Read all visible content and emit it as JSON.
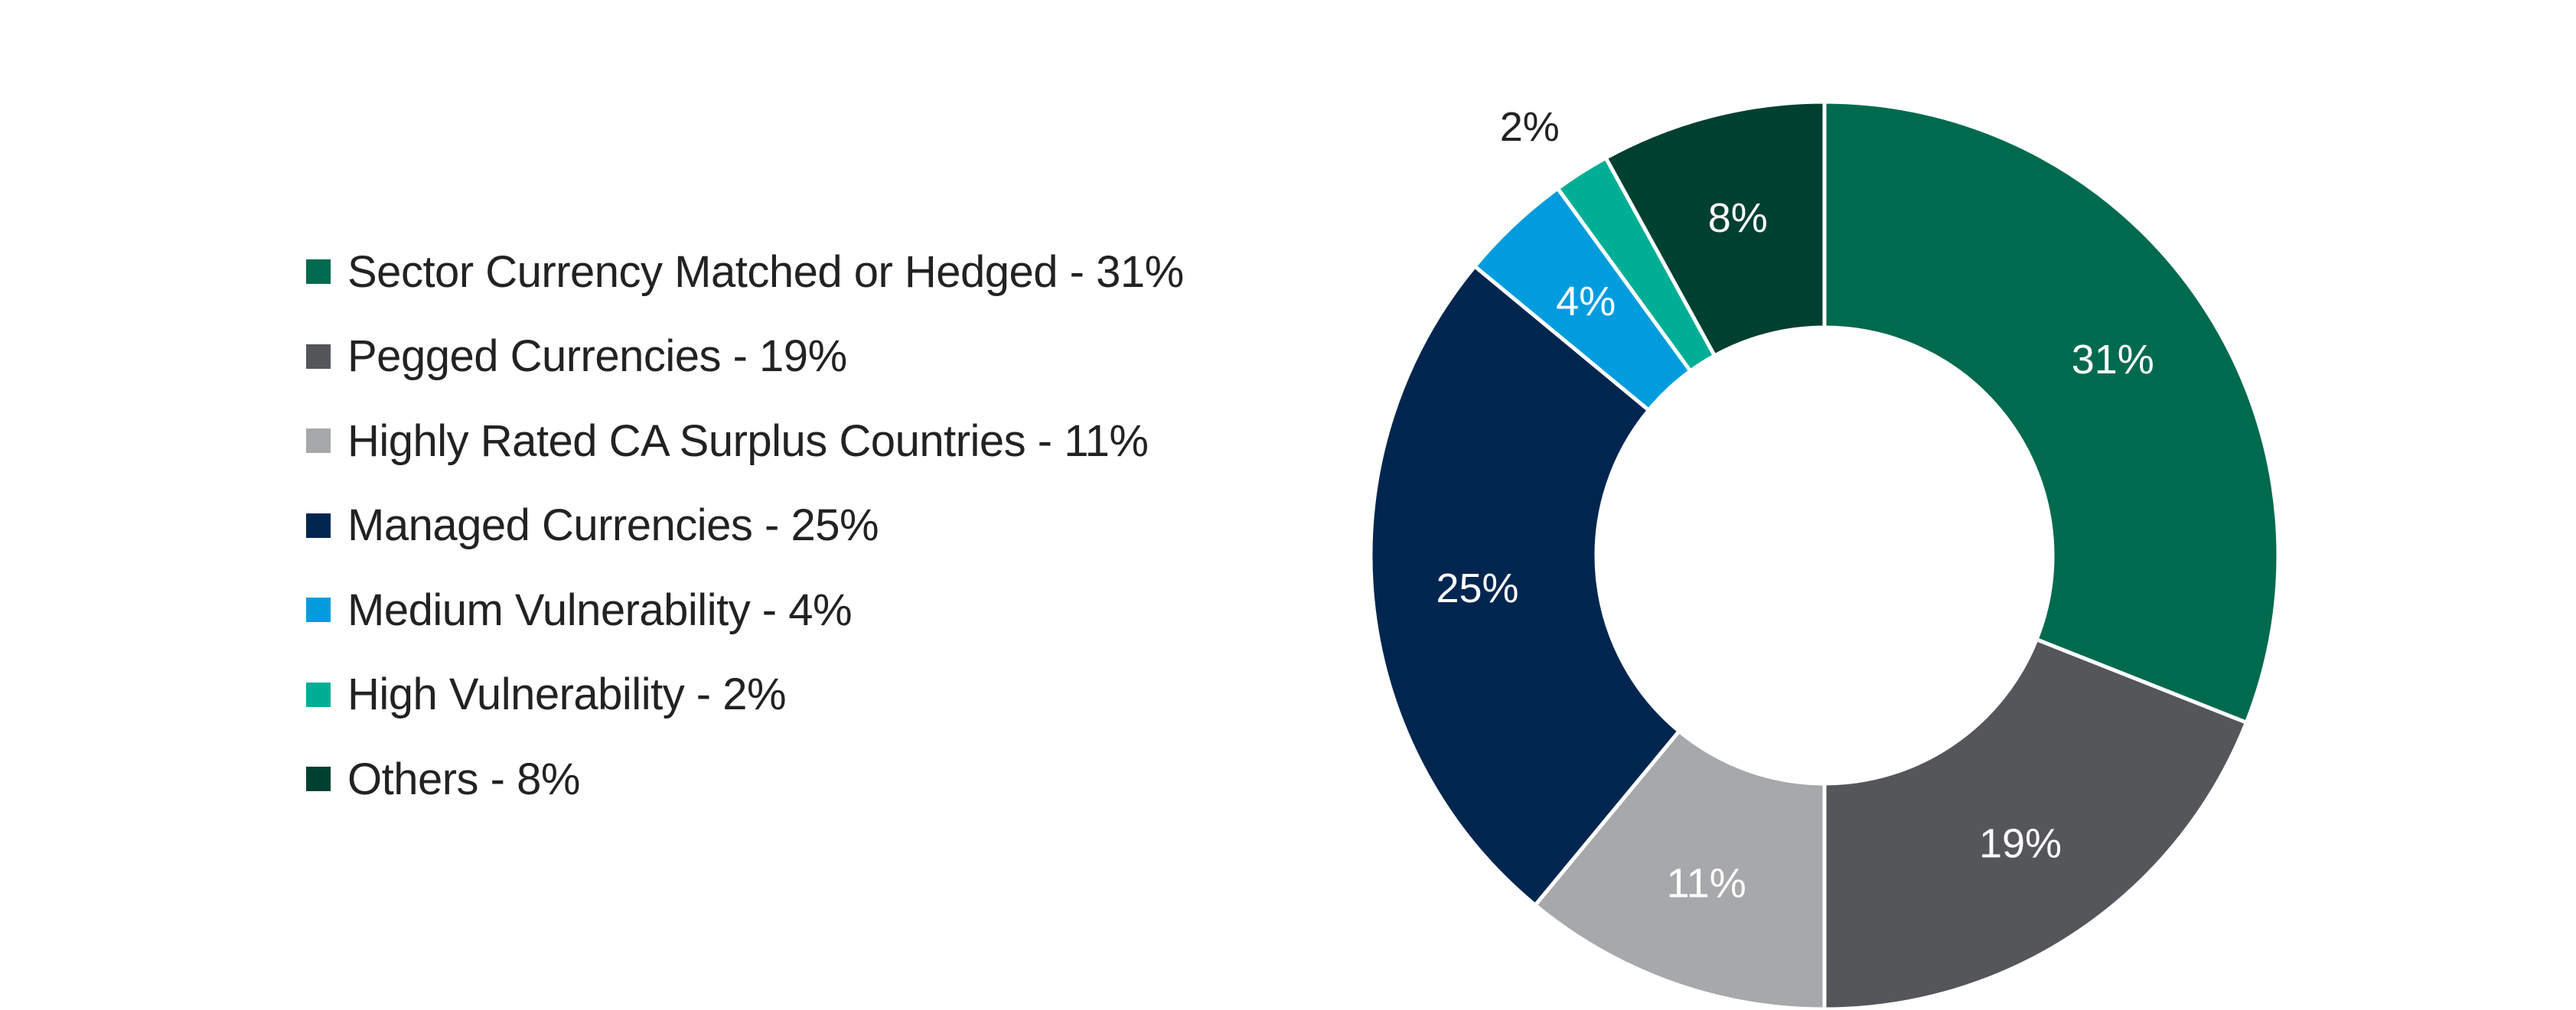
{
  "chart_data": {
    "type": "pie",
    "donut": true,
    "title": "",
    "legend_position": "left",
    "categories": [
      "Sector Currency Matched or Hedged",
      "Pegged Currencies",
      "Highly Rated CA Surplus Countries",
      "Managed Currencies",
      "Medium Vulnerability",
      "High Vulnerability",
      "Others"
    ],
    "values": [
      31,
      19,
      11,
      25,
      4,
      2,
      8
    ],
    "value_labels": [
      "31%",
      "19%",
      "11%",
      "25%",
      "4%",
      "2%",
      "8%"
    ],
    "legend_entries": [
      "Sector Currency Matched or Hedged - 31%",
      "Pegged Currencies - 19%",
      "Highly Rated CA Surplus Countries - 11%",
      "Managed Currencies - 25%",
      "Medium Vulnerability - 4%",
      "High Vulnerability - 2%",
      "Others - 8%"
    ],
    "colors": [
      "#006A4E",
      "#55565A",
      "#A7A8AA",
      "#00264F",
      "#009CDE",
      "#00AE95",
      "#004030"
    ],
    "label_colors": [
      "#ffffff",
      "#ffffff",
      "#ffffff",
      "#ffffff",
      "#ffffff",
      "#222222",
      "#ffffff"
    ]
  }
}
